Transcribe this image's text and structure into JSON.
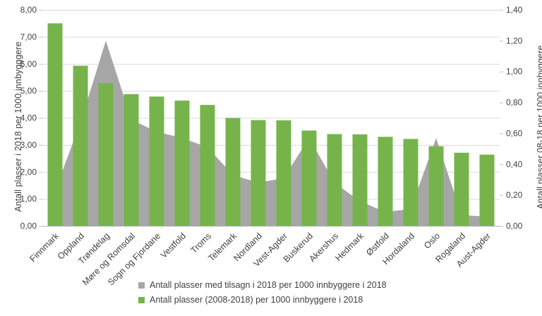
{
  "chart_data": {
    "type": "combo",
    "title": "",
    "categories": [
      "Finnmark",
      "Oppland",
      "Trøndelag",
      "Møre og Romsdal",
      "Sogn og Fjordane",
      "Vestfold",
      "Troms",
      "Telemark",
      "Nordland",
      "Vest-Agder",
      "Buskerud",
      "Akershus",
      "Hedmark",
      "Østfold",
      "Hordaland",
      "Oslo",
      "Rogaland",
      "Aust-Agder"
    ],
    "series": [
      {
        "name": "Antall plasser med tilsagn i 2018 per 1000 innbyggere i 2018",
        "type": "area",
        "axis": "right",
        "color": "#A6A6A6",
        "values": [
          0.23,
          0.67,
          1.2,
          0.69,
          0.61,
          0.57,
          0.51,
          0.33,
          0.28,
          0.31,
          0.57,
          0.28,
          0.16,
          0.09,
          0.11,
          0.57,
          0.07,
          0.06
        ]
      },
      {
        "name": "Antall plasser (2008-2018) per 1000 innbyggere i 2018",
        "type": "bar",
        "axis": "left",
        "color": "#76B44B",
        "values": [
          7.5,
          5.93,
          5.28,
          4.88,
          4.79,
          4.64,
          4.48,
          4.0,
          3.92,
          3.91,
          3.53,
          3.4,
          3.39,
          3.3,
          3.22,
          2.95,
          2.71,
          2.64
        ]
      }
    ],
    "axes": {
      "left": {
        "title": "Antall plasser i 2018 per 1000 innbygggere",
        "min": 0,
        "max": 8,
        "step": 1,
        "tick_labels": [
          "0,00",
          "1,00",
          "2,00",
          "3,00",
          "4,00",
          "5,00",
          "6,00",
          "7,00",
          "8,00"
        ]
      },
      "right": {
        "title": "Antall plasser 08-18 per 1000 innbyggere",
        "min": 0,
        "max": 1.4,
        "step": 0.2,
        "tick_labels": [
          "0,00",
          "0,20",
          "0,40",
          "0,60",
          "0,80",
          "1,00",
          "1,20",
          "1,40"
        ]
      }
    },
    "legend_position": "bottom",
    "grid": true,
    "decimal_separator": ","
  },
  "colors": {
    "bar_green": "#76B44B",
    "area_gray": "#A6A6A6",
    "gridline": "#D9D9D9",
    "axis_line": "#BFBFBF",
    "tick_mark": "#BFBFBF",
    "text": "#404040",
    "background": "#FFFFFF"
  }
}
